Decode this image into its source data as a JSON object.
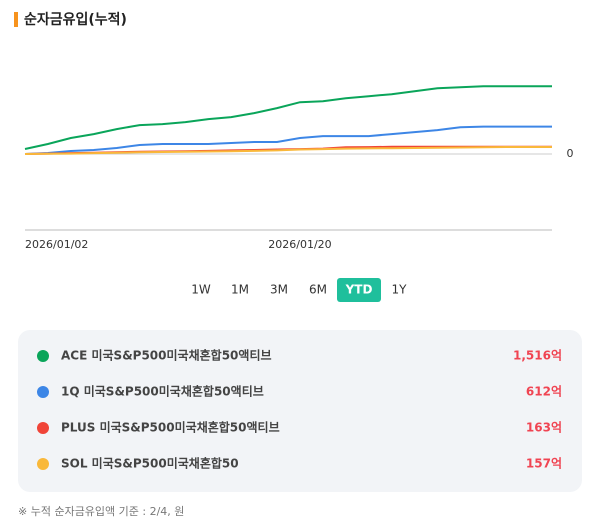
{
  "chart_data": {
    "type": "line",
    "title": "순자금유입(누적)",
    "categories": [
      "2026/01/02",
      null,
      null,
      null,
      null,
      null,
      null,
      null,
      null,
      null,
      null,
      null,
      "2026/01/20",
      null,
      null,
      null,
      null,
      null,
      null,
      null,
      null,
      null,
      null,
      null
    ],
    "series": [
      {
        "name": "ACE 미국S&P500미국채혼합50액티브",
        "color": "#0aa55a",
        "values": [
          111,
          223,
          357,
          446,
          557,
          646,
          669,
          713,
          780,
          825,
          914,
          1026,
          1159,
          1182,
          1249,
          1293,
          1338,
          1405,
          1472,
          1494,
          1516,
          1516,
          1516,
          1516
        ],
        "total": {
          "value": 1516,
          "label": "1,516억"
        }
      },
      {
        "name": "1Q 미국S&P500미국채혼합50액티브",
        "color": "#3d86e6",
        "values": [
          0,
          22,
          67,
          89,
          134,
          201,
          223,
          223,
          223,
          245,
          268,
          268,
          357,
          401,
          401,
          401,
          446,
          490,
          535,
          600,
          612,
          612,
          612,
          612
        ],
        "total": {
          "value": 612,
          "label": "612억"
        }
      },
      {
        "name": "PLUS 미국S&P500미국채혼합50액티브",
        "color": "#f04438",
        "values": [
          0,
          10,
          20,
          30,
          40,
          50,
          55,
          60,
          70,
          80,
          90,
          100,
          110,
          120,
          150,
          155,
          160,
          160,
          160,
          160,
          160,
          163,
          163,
          163
        ],
        "total": {
          "value": 163,
          "label": "163억"
        }
      },
      {
        "name": "SOL 미국S&P500미국채혼합50",
        "color": "#f9b83a",
        "values": [
          0,
          5,
          10,
          20,
          30,
          40,
          45,
          50,
          55,
          60,
          70,
          80,
          100,
          110,
          120,
          125,
          130,
          135,
          140,
          145,
          150,
          157,
          157,
          157
        ],
        "total": {
          "value": 157,
          "label": "157억"
        }
      }
    ],
    "ylim": [
      -1700,
      2550
    ],
    "yticks": [
      0
    ],
    "grid": true,
    "tabs": [
      "1W",
      "1M",
      "3M",
      "6M",
      "YTD",
      "1Y"
    ],
    "active_tab": 4,
    "note": "※ 누적 순자금유입액 기준 : 2/4, 원"
  }
}
